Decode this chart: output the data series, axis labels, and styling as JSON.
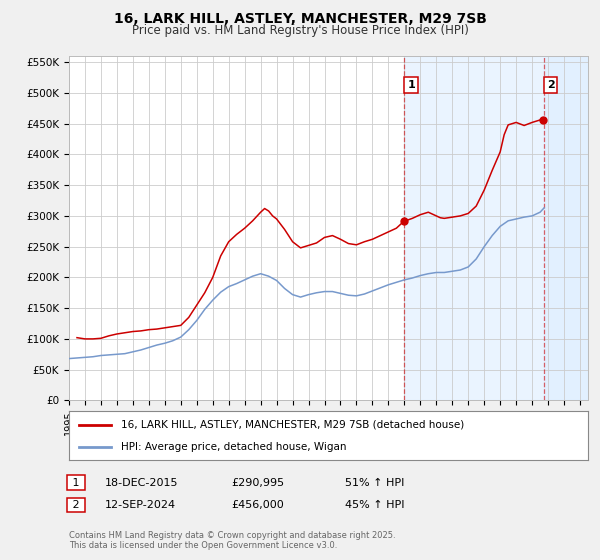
{
  "title": "16, LARK HILL, ASTLEY, MANCHESTER, M29 7SB",
  "subtitle": "Price paid vs. HM Land Registry's House Price Index (HPI)",
  "ylim": [
    0,
    560000
  ],
  "xlim_start": 1995.0,
  "xlim_end": 2027.5,
  "yticks": [
    0,
    50000,
    100000,
    150000,
    200000,
    250000,
    300000,
    350000,
    400000,
    450000,
    500000,
    550000
  ],
  "ytick_labels": [
    "£0",
    "£50K",
    "£100K",
    "£150K",
    "£200K",
    "£250K",
    "£300K",
    "£350K",
    "£400K",
    "£450K",
    "£500K",
    "£550K"
  ],
  "background_color": "#f0f0f0",
  "plot_bg_color": "#ffffff",
  "grid_color": "#cccccc",
  "red_line_color": "#cc0000",
  "blue_line_color": "#7799cc",
  "shade_color": "#ddeeff",
  "marker1_date": 2015.96,
  "marker1_value": 290995,
  "marker2_date": 2024.71,
  "marker2_value": 456000,
  "vline1_x": 2016.0,
  "vline2_x": 2024.75,
  "legend_line1": "16, LARK HILL, ASTLEY, MANCHESTER, M29 7SB (detached house)",
  "legend_line2": "HPI: Average price, detached house, Wigan",
  "annotation1_date": "18-DEC-2015",
  "annotation1_price": "£290,995",
  "annotation1_hpi": "51% ↑ HPI",
  "annotation2_date": "12-SEP-2024",
  "annotation2_price": "£456,000",
  "annotation2_hpi": "45% ↑ HPI",
  "footer": "Contains HM Land Registry data © Crown copyright and database right 2025.\nThis data is licensed under the Open Government Licence v3.0.",
  "red_data_years": [
    1995.5,
    1996.0,
    1996.5,
    1997.0,
    1997.5,
    1998.0,
    1998.5,
    1999.0,
    1999.5,
    2000.0,
    2000.5,
    2001.0,
    2001.5,
    2002.0,
    2002.5,
    2003.0,
    2003.5,
    2004.0,
    2004.5,
    2005.0,
    2005.5,
    2006.0,
    2006.5,
    2007.0,
    2007.25,
    2007.5,
    2007.75,
    2008.0,
    2008.5,
    2009.0,
    2009.5,
    2010.0,
    2010.5,
    2011.0,
    2011.5,
    2012.0,
    2012.5,
    2013.0,
    2013.5,
    2014.0,
    2014.5,
    2015.0,
    2015.5,
    2015.96,
    2016.5,
    2017.0,
    2017.5,
    2018.0,
    2018.25,
    2018.5,
    2019.0,
    2019.5,
    2020.0,
    2020.5,
    2021.0,
    2021.5,
    2022.0,
    2022.25,
    2022.5,
    2023.0,
    2023.5,
    2024.0,
    2024.5,
    2024.71
  ],
  "red_data_values": [
    102000,
    100000,
    100000,
    101000,
    105000,
    108000,
    110000,
    112000,
    113000,
    115000,
    116000,
    118000,
    120000,
    122000,
    135000,
    155000,
    175000,
    200000,
    235000,
    258000,
    270000,
    280000,
    292000,
    306000,
    312000,
    308000,
    300000,
    295000,
    278000,
    258000,
    248000,
    252000,
    256000,
    265000,
    268000,
    262000,
    255000,
    253000,
    258000,
    262000,
    268000,
    274000,
    280000,
    291000,
    296000,
    302000,
    306000,
    300000,
    297000,
    296000,
    298000,
    300000,
    304000,
    316000,
    342000,
    374000,
    404000,
    432000,
    448000,
    452000,
    447000,
    452000,
    456000,
    456000
  ],
  "blue_data_years": [
    1995.0,
    1995.5,
    1996.0,
    1996.5,
    1997.0,
    1997.5,
    1998.0,
    1998.5,
    1999.0,
    1999.5,
    2000.0,
    2000.5,
    2001.0,
    2001.5,
    2002.0,
    2002.5,
    2003.0,
    2003.5,
    2004.0,
    2004.5,
    2005.0,
    2005.5,
    2006.0,
    2006.5,
    2007.0,
    2007.5,
    2008.0,
    2008.5,
    2009.0,
    2009.5,
    2010.0,
    2010.5,
    2011.0,
    2011.5,
    2012.0,
    2012.5,
    2013.0,
    2013.5,
    2014.0,
    2014.5,
    2015.0,
    2015.5,
    2016.0,
    2016.5,
    2017.0,
    2017.5,
    2018.0,
    2018.5,
    2019.0,
    2019.5,
    2020.0,
    2020.5,
    2021.0,
    2021.5,
    2022.0,
    2022.5,
    2023.0,
    2023.5,
    2024.0,
    2024.5,
    2024.75
  ],
  "blue_data_values": [
    68000,
    69000,
    70000,
    71000,
    73000,
    74000,
    75000,
    76000,
    79000,
    82000,
    86000,
    90000,
    93000,
    97000,
    103000,
    115000,
    130000,
    148000,
    163000,
    176000,
    185000,
    190000,
    196000,
    202000,
    206000,
    202000,
    195000,
    182000,
    172000,
    168000,
    172000,
    175000,
    177000,
    177000,
    174000,
    171000,
    170000,
    173000,
    178000,
    183000,
    188000,
    192000,
    196000,
    199000,
    203000,
    206000,
    208000,
    208000,
    210000,
    212000,
    217000,
    230000,
    250000,
    268000,
    283000,
    292000,
    295000,
    298000,
    300000,
    306000,
    313000
  ]
}
